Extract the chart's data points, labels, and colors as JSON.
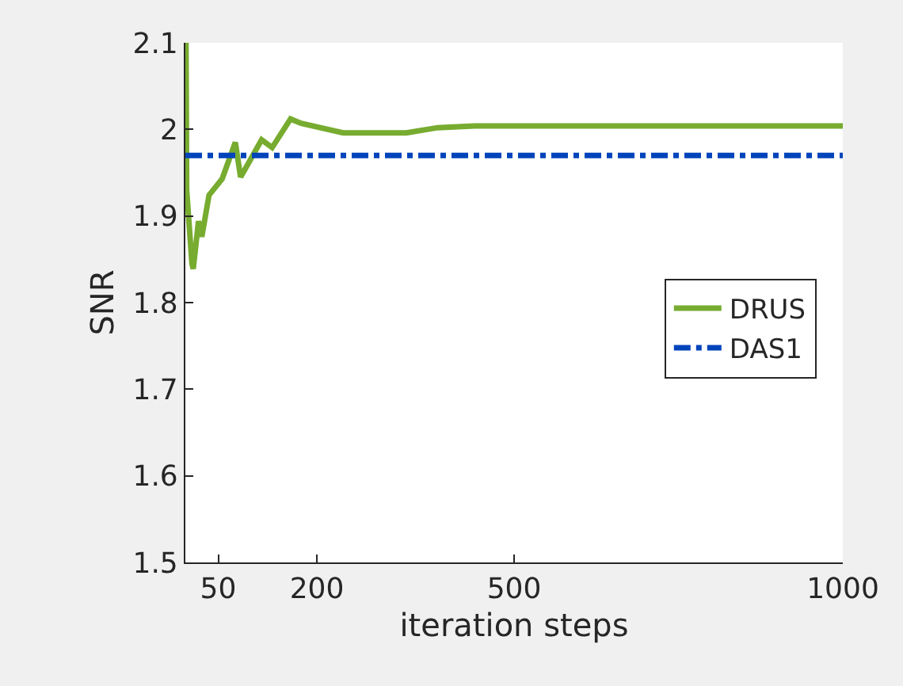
{
  "chart_data": {
    "type": "line",
    "xlabel": "iteration steps",
    "ylabel": "SNR",
    "series": [
      {
        "name": "DRUS",
        "color": "#77ac30",
        "line_style": "solid",
        "x": [
          1,
          2,
          10,
          12,
          20,
          25,
          36,
          56,
          76,
          84,
          96,
          116,
          132,
          160,
          176,
          240,
          336,
          384,
          440,
          500,
          1000
        ],
        "values": [
          2.1,
          1.93,
          1.845,
          1.839,
          1.894,
          1.876,
          1.924,
          1.943,
          1.985,
          1.945,
          1.961,
          1.988,
          1.979,
          2.012,
          2.007,
          1.996,
          1.996,
          2.002,
          2.004,
          2.004,
          2.004
        ]
      },
      {
        "name": "DAS1",
        "color": "#0044bb",
        "line_style": "dashdot",
        "x": [
          0,
          1000
        ],
        "values": [
          1.97,
          1.97
        ]
      }
    ],
    "xlim": [
      0,
      1000
    ],
    "xticks": [
      50,
      200,
      500,
      1000
    ],
    "ylim": [
      1.5,
      2.1
    ],
    "yticks": [
      1.5,
      1.6,
      1.7,
      1.8,
      1.9,
      2,
      2.1
    ],
    "legend": "right"
  }
}
